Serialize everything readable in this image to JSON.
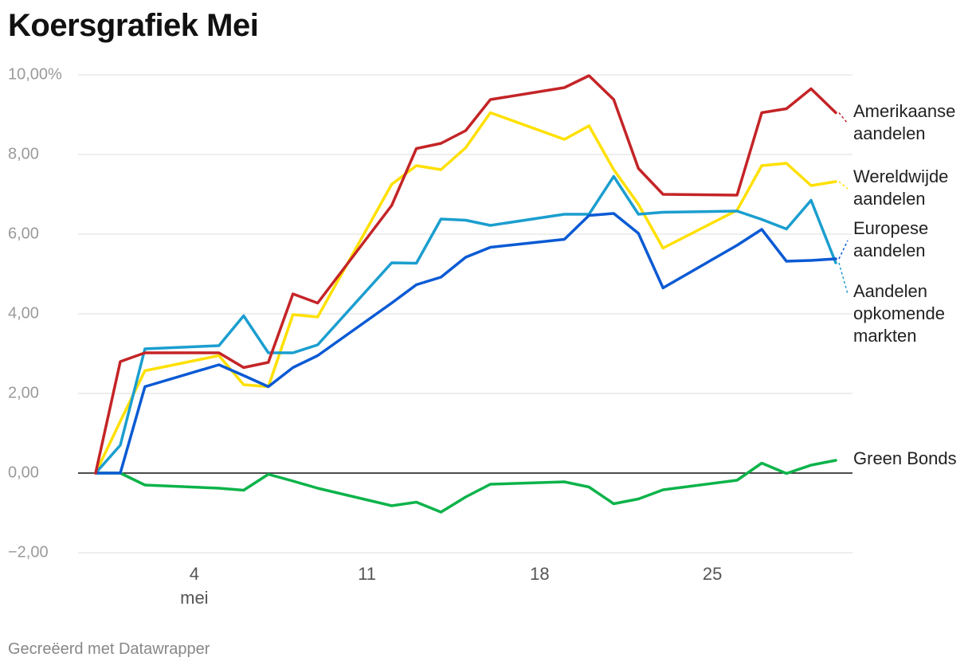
{
  "header": {
    "title": "Koersgrafiek Mei"
  },
  "footer": {
    "credit": "Gecreëerd met Datawrapper"
  },
  "chart_data": {
    "type": "line",
    "title": "Koersgrafiek Mei",
    "ylim": [
      -2,
      10
    ],
    "yticks": [
      {
        "value": 10,
        "label": "10,00%"
      },
      {
        "value": 8,
        "label": "8,00"
      },
      {
        "value": 6,
        "label": "6,00"
      },
      {
        "value": 4,
        "label": "4,00"
      },
      {
        "value": 2,
        "label": "2,00"
      },
      {
        "value": 0,
        "label": "0,00"
      },
      {
        "value": -2,
        "label": "−2,00"
      }
    ],
    "xlim": [
      0,
      30.5
    ],
    "xticks": [
      {
        "value": 4,
        "label": "4",
        "sublabel": "mei"
      },
      {
        "value": 11,
        "label": "11"
      },
      {
        "value": 18,
        "label": "18"
      },
      {
        "value": 25,
        "label": "25"
      }
    ],
    "x": [
      0,
      1,
      2,
      5,
      6,
      7,
      8,
      9,
      12,
      13,
      14,
      15,
      16,
      19,
      20,
      21,
      22,
      23,
      26,
      27,
      28,
      29,
      30
    ],
    "series": [
      {
        "name": "Amerikaanse aandelen",
        "color": "#c42427",
        "legend": [
          "Amerikaanse",
          "aandelen"
        ],
        "values": [
          0,
          2.8,
          3.02,
          3.02,
          2.65,
          2.78,
          4.5,
          4.27,
          6.72,
          8.15,
          8.28,
          8.6,
          9.38,
          9.68,
          9.98,
          9.38,
          7.65,
          7.0,
          6.98,
          9.05,
          9.15,
          9.65,
          9.05
        ]
      },
      {
        "name": "Wereldwijde aandelen",
        "color": "#ffe000",
        "legend": [
          "Wereldwijde",
          "aandelen"
        ],
        "values": [
          0,
          1.3,
          2.57,
          2.95,
          2.22,
          2.17,
          3.98,
          3.92,
          7.25,
          7.72,
          7.62,
          8.17,
          9.05,
          8.38,
          8.72,
          7.62,
          6.75,
          5.65,
          6.6,
          7.72,
          7.78,
          7.22,
          7.32
        ]
      },
      {
        "name": "Europese aandelen",
        "color": "#0a5ad4",
        "legend": [
          "Europese",
          "aandelen"
        ],
        "values": [
          0,
          0,
          2.17,
          2.72,
          2.45,
          2.17,
          2.65,
          2.95,
          4.27,
          4.73,
          4.92,
          5.42,
          5.67,
          5.87,
          6.47,
          6.52,
          6.02,
          4.65,
          5.72,
          6.12,
          5.32,
          5.34,
          5.38
        ]
      },
      {
        "name": "Aandelen opkomende markten",
        "color": "#1b9ecf",
        "legend": [
          "Aandelen",
          "opkomende",
          "markten"
        ],
        "values": [
          0,
          0.7,
          3.12,
          3.2,
          3.95,
          3.02,
          3.02,
          3.22,
          5.28,
          5.27,
          6.38,
          6.35,
          6.22,
          6.5,
          6.5,
          7.45,
          6.5,
          6.55,
          6.58,
          6.37,
          6.13,
          6.85,
          5.28
        ]
      },
      {
        "name": "Green Bonds",
        "color": "#0cb34a",
        "legend": [
          "Green Bonds"
        ],
        "values": [
          0,
          0,
          -0.3,
          -0.38,
          -0.43,
          -0.03,
          -0.2,
          -0.38,
          -0.82,
          -0.73,
          -0.98,
          -0.6,
          -0.28,
          -0.22,
          -0.35,
          -0.77,
          -0.65,
          -0.42,
          -0.18,
          0.25,
          -0.01,
          0.2,
          0.32
        ]
      }
    ]
  }
}
